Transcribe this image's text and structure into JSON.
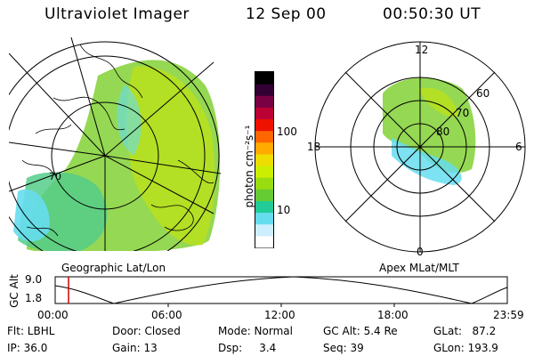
{
  "header": {
    "instrument": "Ultraviolet Imager",
    "date": "12 Sep 00",
    "time": "00:50:30 UT"
  },
  "left_panel": {
    "label": "Geographic Lat/Lon"
  },
  "colorbar": {
    "unit_label": "photon cm⁻²s⁻¹",
    "tick_100": "100",
    "tick_10": "10",
    "colors": [
      "#ffffff",
      "#cceeff",
      "#66ddee",
      "#22cc99",
      "#66cc33",
      "#99dd11",
      "#ccee00",
      "#eedd00",
      "#ffaa00",
      "#ff6600",
      "#ee1100",
      "#bb0033",
      "#7a0044",
      "#330033",
      "#000000"
    ]
  },
  "right_panel": {
    "label": "Apex MLat/MLT",
    "mlt_12": "12",
    "mlt_18": "18",
    "mlt_6": "6",
    "mlt_0": "0",
    "lat_60": "60",
    "lat_70": "70",
    "lat_80": "80"
  },
  "timeline": {
    "ylabel": "GC Alt",
    "y_max": "9.0",
    "y_min": "1.8",
    "ticks": [
      "00:00",
      "06:00",
      "12:00",
      "18:00",
      "23:59"
    ],
    "current_time_color": "#cc0000"
  },
  "info": {
    "flt": "Flt: LBHL",
    "ip": "IP: 36.0",
    "door": "Door: Closed",
    "gain": "Gain: 13",
    "mode": "Mode: Normal",
    "dsp": "Dsp:     3.4",
    "gc_alt": "GC Alt: 5.4 Re",
    "seq": "Seq: 39",
    "glat": "GLat:   87.2",
    "glon": "GLon: 193.9"
  }
}
